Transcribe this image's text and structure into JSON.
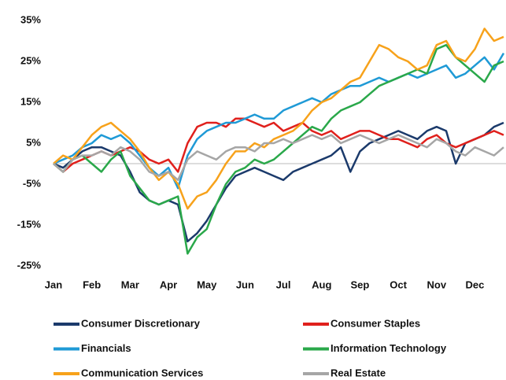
{
  "chart_data": {
    "type": "line",
    "categories": [
      "Jan",
      null,
      null,
      null,
      "Feb",
      null,
      null,
      null,
      "Mar",
      null,
      null,
      null,
      "Apr",
      null,
      null,
      null,
      "May",
      null,
      null,
      null,
      "Jun",
      null,
      null,
      null,
      "Jul",
      null,
      null,
      null,
      "Aug",
      null,
      null,
      null,
      "Sep",
      null,
      null,
      null,
      "Oct",
      null,
      null,
      null,
      "Nov",
      null,
      null,
      null,
      "Dec",
      null,
      null,
      null
    ],
    "series": [
      {
        "name": "Consumer Discretionary",
        "color": "#1b3a6b",
        "values": [
          0,
          -1,
          1,
          3,
          4,
          4,
          3,
          2,
          -2,
          -7,
          -9,
          -10,
          -9,
          -10,
          -19,
          -17,
          -14,
          -10,
          -6,
          -3,
          -2,
          -1,
          -2,
          -3,
          -4,
          -2,
          -1,
          0,
          1,
          2,
          4,
          -2,
          3,
          5,
          6,
          7,
          8,
          7,
          6,
          8,
          9,
          8,
          0,
          5,
          6,
          7,
          9,
          10
        ]
      },
      {
        "name": "Consumer Staples",
        "color": "#e0201c",
        "values": [
          0,
          -2,
          0,
          1,
          2,
          3,
          2,
          3,
          4,
          3,
          1,
          0,
          1,
          -2,
          5,
          9,
          10,
          10,
          9,
          11,
          11,
          10,
          9,
          10,
          8,
          9,
          10,
          8,
          7,
          8,
          6,
          7,
          8,
          8,
          7,
          6,
          6,
          5,
          4,
          6,
          7,
          5,
          4,
          5,
          6,
          7,
          8,
          7
        ]
      },
      {
        "name": "Financials",
        "color": "#1f9ad6",
        "values": [
          0,
          1,
          2,
          4,
          5,
          7,
          6,
          7,
          5,
          2,
          -1,
          -3,
          -1,
          -6,
          2,
          6,
          8,
          9,
          10,
          10,
          11,
          12,
          11,
          11,
          13,
          14,
          15,
          16,
          15,
          17,
          18,
          19,
          19,
          20,
          21,
          20,
          21,
          22,
          21,
          22,
          23,
          24,
          21,
          22,
          24,
          26,
          23,
          27
        ]
      },
      {
        "name": "Information Technology",
        "color": "#2aa84a",
        "values": [
          0,
          -2,
          1,
          2,
          0,
          -2,
          1,
          3,
          -3,
          -6,
          -9,
          -10,
          -9,
          -8,
          -22,
          -18,
          -16,
          -10,
          -5,
          -2,
          -1,
          1,
          0,
          1,
          3,
          5,
          7,
          9,
          8,
          11,
          13,
          14,
          15,
          17,
          19,
          20,
          21,
          22,
          23,
          22,
          28,
          29,
          26,
          24,
          22,
          20,
          24,
          25
        ]
      },
      {
        "name": "Communication Services",
        "color": "#f7a21b",
        "values": [
          0,
          2,
          1,
          4,
          7,
          9,
          10,
          8,
          6,
          3,
          -1,
          -4,
          -2,
          -5,
          -11,
          -8,
          -7,
          -4,
          0,
          3,
          3,
          5,
          4,
          6,
          7,
          8,
          10,
          13,
          15,
          16,
          18,
          20,
          21,
          25,
          29,
          28,
          26,
          25,
          23,
          24,
          29,
          30,
          26,
          25,
          28,
          33,
          30,
          31
        ]
      },
      {
        "name": "Real Estate",
        "color": "#a6a6a6",
        "values": [
          0,
          -2,
          1,
          2,
          2,
          3,
          2,
          4,
          3,
          1,
          -2,
          -3,
          -2,
          -4,
          1,
          3,
          2,
          1,
          3,
          4,
          4,
          3,
          5,
          5,
          6,
          5,
          6,
          7,
          6,
          7,
          5,
          6,
          7,
          6,
          5,
          6,
          7,
          6,
          5,
          4,
          6,
          5,
          3,
          2,
          4,
          3,
          2,
          4
        ]
      }
    ],
    "ylim": [
      -25,
      35
    ],
    "yticks": [
      {
        "value": 35,
        "label": "35%"
      },
      {
        "value": 25,
        "label": "25%"
      },
      {
        "value": 15,
        "label": "15%"
      },
      {
        "value": 5,
        "label": "5%"
      },
      {
        "value": -5,
        "label": "-5%"
      },
      {
        "value": -15,
        "label": "-15%"
      },
      {
        "value": -25,
        "label": "-25%"
      }
    ],
    "grid": false
  }
}
